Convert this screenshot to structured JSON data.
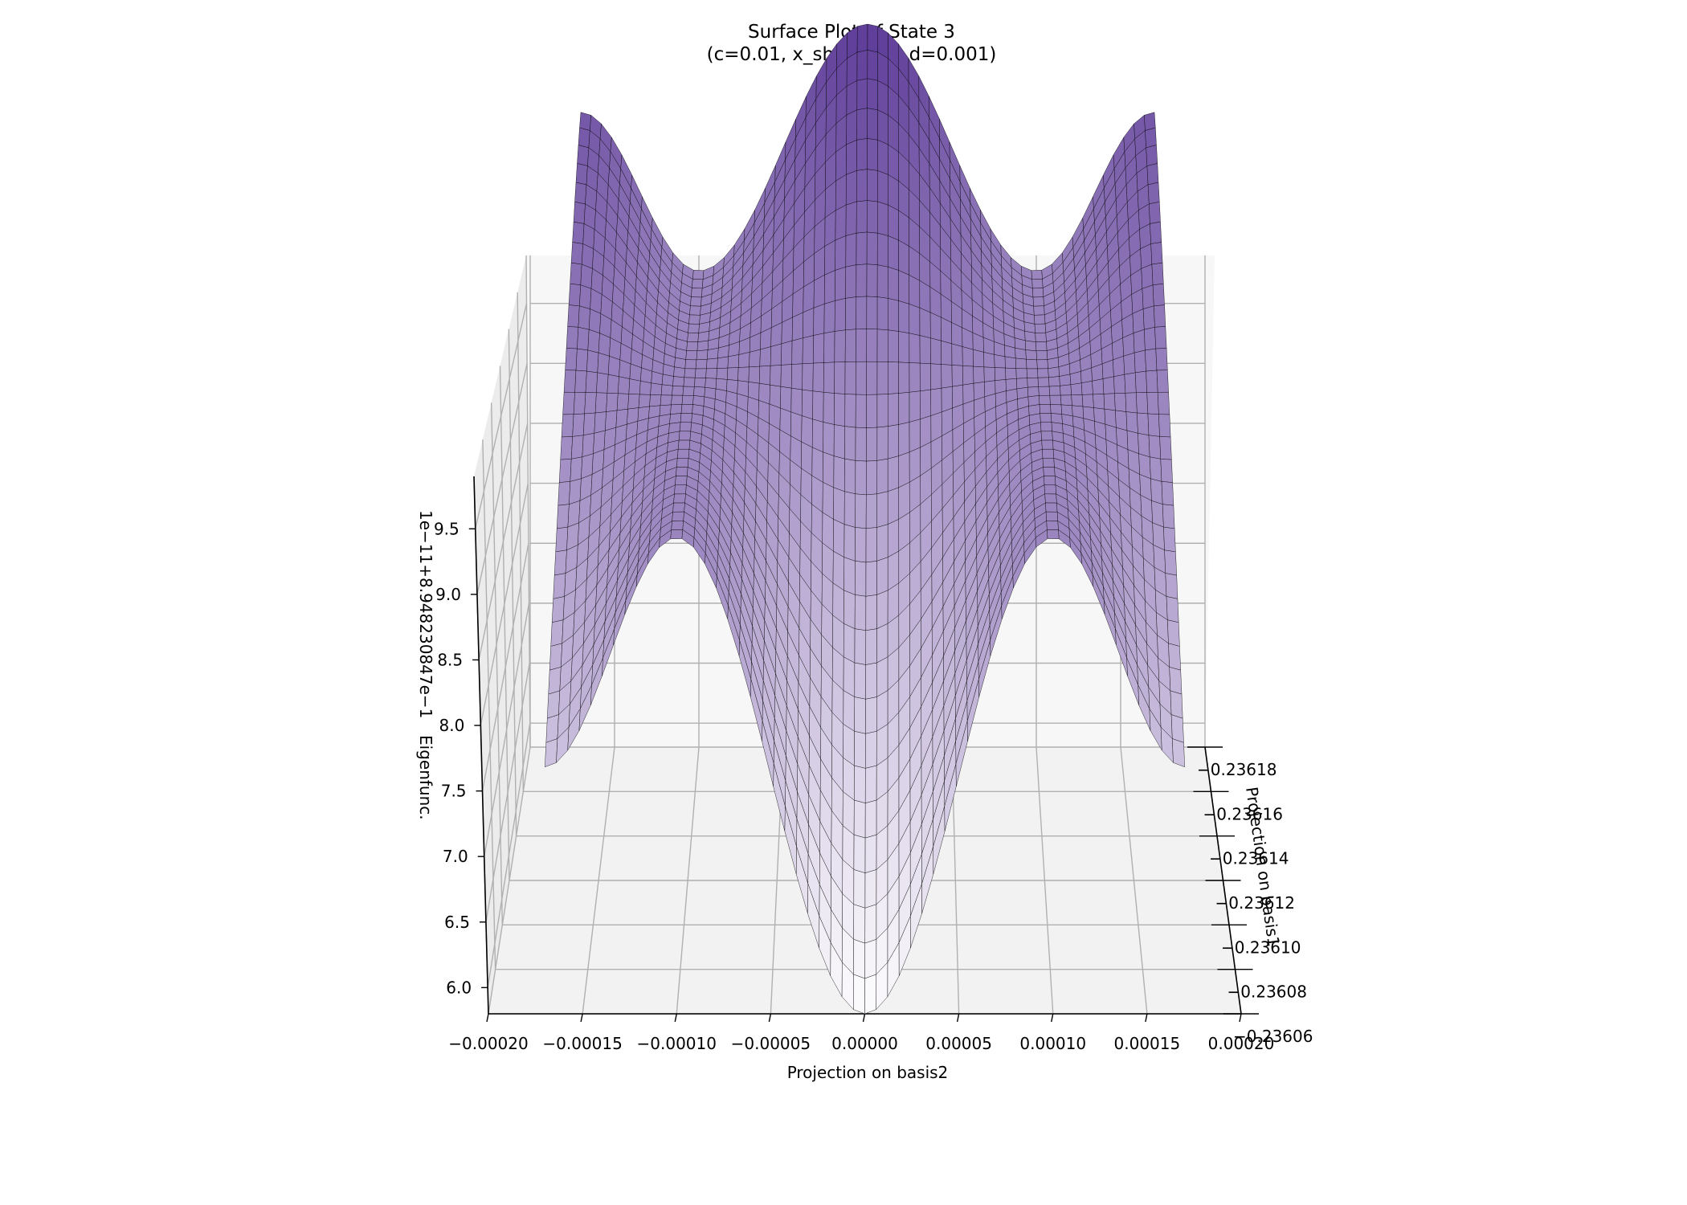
{
  "chart_data": {
    "type": "surface",
    "title": "Surface Plot of State 3",
    "subtitle": "(c=0.01, x_shift=0.1, d=0.001)",
    "xlabel": "Projection on basis2",
    "ylabel": "Projection on basis1",
    "zlabel": "Eigenfunc.",
    "z_offset_label": "1e−11+8.948230847e−1",
    "x_ticks": [
      "−0.00020",
      "−0.00015",
      "−0.00010",
      "−0.00005",
      "0.00000",
      "0.00005",
      "0.00010",
      "0.00015",
      "0.00020"
    ],
    "x_tick_values": [
      -0.0002,
      -0.00015,
      -0.0001,
      -5e-05,
      0,
      5e-05,
      0.0001,
      0.00015,
      0.0002
    ],
    "y_ticks": [
      "−0.23618",
      "−0.23616",
      "−0.23614",
      "−0.23612",
      "−0.23610",
      "−0.23608",
      "−0.23606"
    ],
    "y_tick_values": [
      -0.23618,
      -0.23616,
      -0.23614,
      -0.23612,
      -0.2361,
      -0.23608,
      -0.23606
    ],
    "z_ticks": [
      "6.0",
      "6.5",
      "7.0",
      "7.5",
      "8.0",
      "8.5",
      "9.0",
      "9.5"
    ],
    "z_tick_values": [
      6.0,
      6.5,
      7.0,
      7.5,
      8.0,
      8.5,
      9.0,
      9.5
    ],
    "xlim": [
      -0.0002,
      0.0002
    ],
    "ylim": [
      -0.23618,
      -0.23606
    ],
    "zlim": [
      5.8,
      9.9
    ],
    "surface": {
      "colormap": "Purples",
      "edge_color": "#000000",
      "peaks": [
        {
          "x": 0.0,
          "z": 9.9
        },
        {
          "x": -0.00016,
          "z": 9.4
        },
        {
          "x": 0.00016,
          "z": 9.4
        }
      ],
      "saddles": [
        {
          "x": -0.0001,
          "z": 8.5
        },
        {
          "x": 0.0001,
          "z": 8.5
        }
      ],
      "center_minimum_z": 5.8
    },
    "grid": true,
    "colors": {
      "pane": "#f2f2f2",
      "grid": "#b0b0b0",
      "surface_low": "#fcfbfd",
      "surface_high": "#5e3c99"
    }
  }
}
